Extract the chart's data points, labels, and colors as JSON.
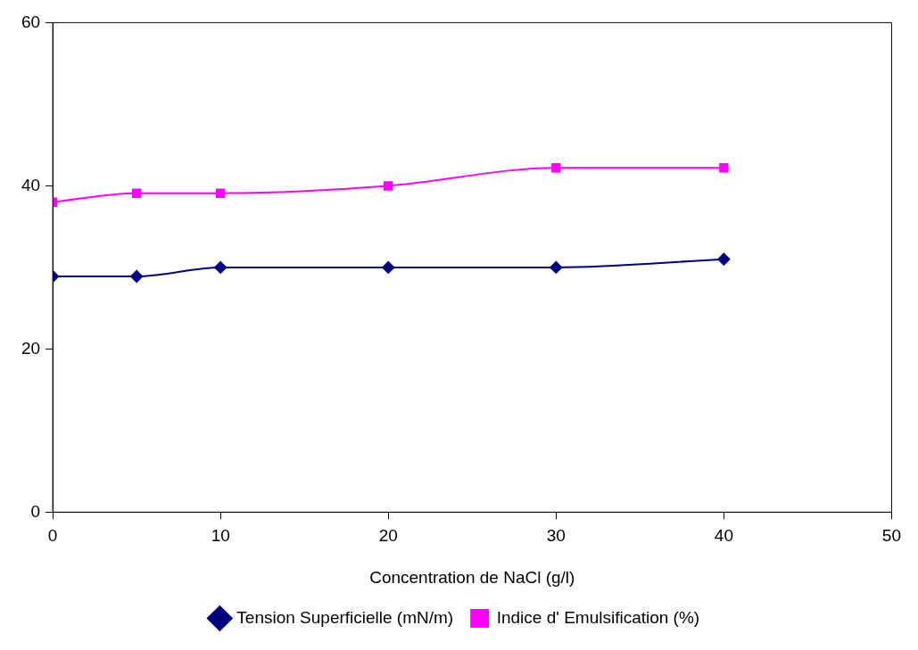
{
  "chart_data": {
    "type": "line",
    "xlabel": "Concentration de NaCl (g/l)",
    "x": [
      0,
      5,
      10,
      20,
      30,
      40
    ],
    "series": [
      {
        "name": "Tension Superficielle (mN/m)",
        "color": "#000080",
        "marker": "diamond",
        "values": [
          28.9,
          28.9,
          30,
          30,
          30,
          31
        ]
      },
      {
        "name": "Indice d' Emulsification (%)",
        "color": "#ff00ff",
        "marker": "square",
        "values": [
          38,
          39.1,
          39.1,
          40,
          42.2,
          42.2
        ]
      }
    ],
    "xlim": [
      0,
      50
    ],
    "xticks": [
      0,
      10,
      20,
      30,
      40,
      50
    ],
    "ylim": [
      0,
      60
    ],
    "yticks": [
      0,
      20,
      40,
      60
    ],
    "grid": false,
    "legend": "bottom",
    "line_style": "solid"
  }
}
